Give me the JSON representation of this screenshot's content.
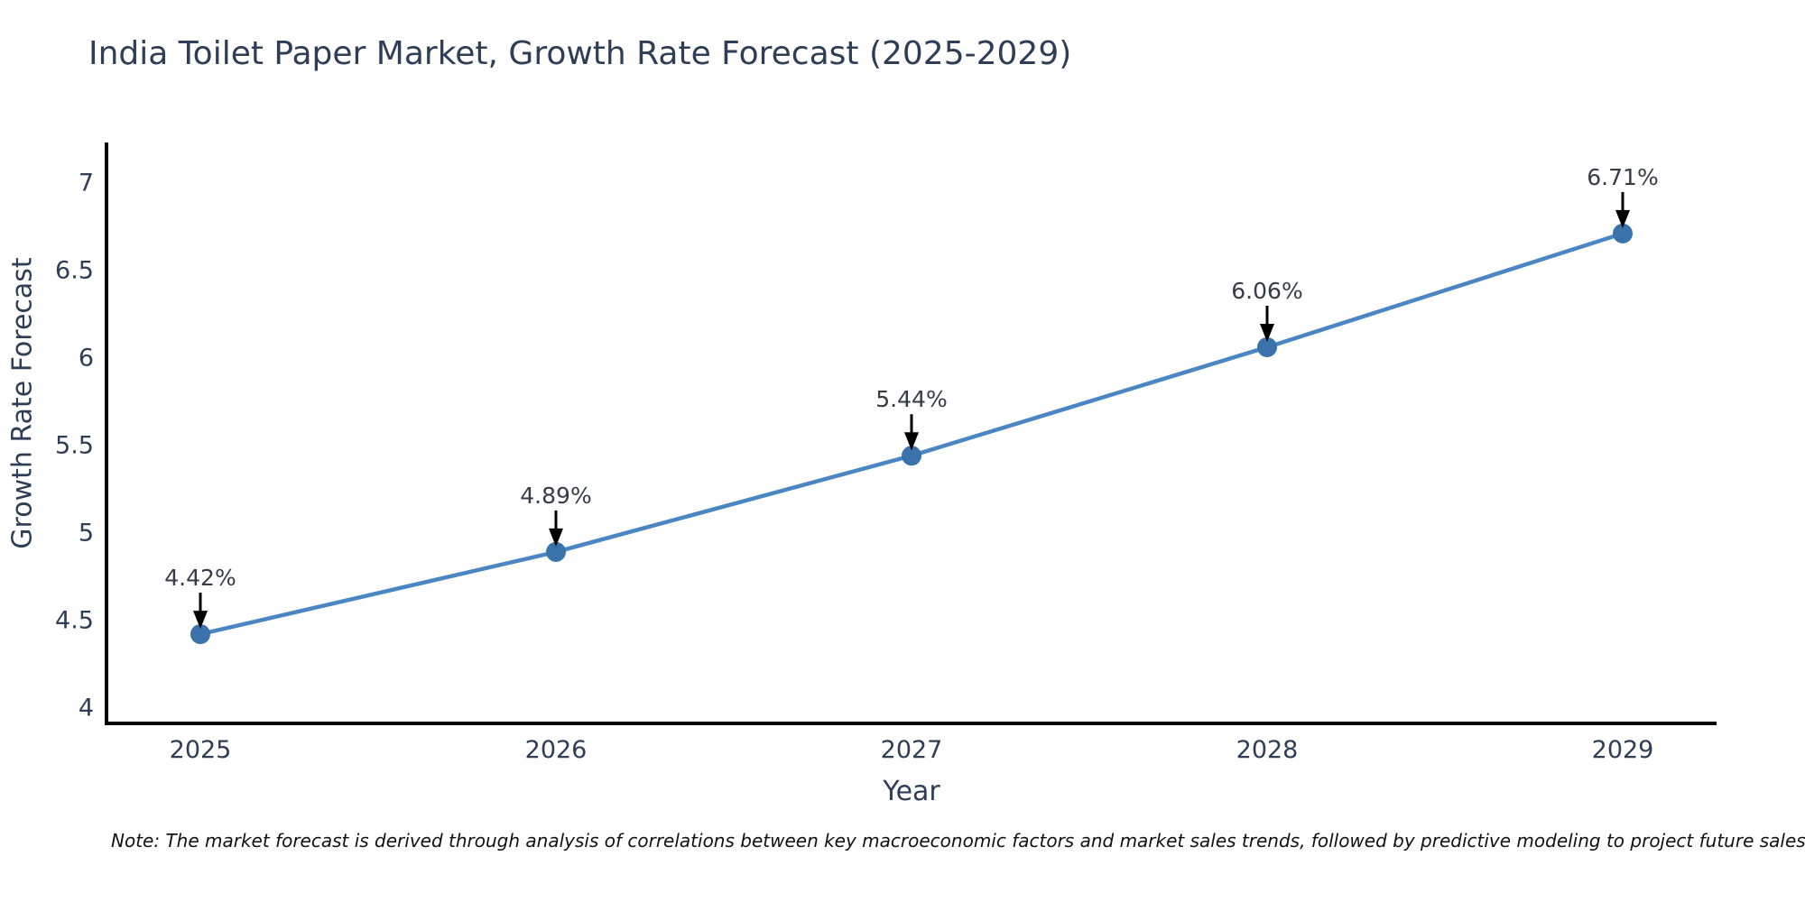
{
  "title": "India Toilet Paper Market, Growth Rate Forecast (2025-2029)",
  "note": "Note: The market forecast is derived through analysis of correlations between key macroeconomic factors and market sales trends, followed by predictive modeling to project future sales",
  "chart_data": {
    "type": "line",
    "x": [
      "2025",
      "2026",
      "2027",
      "2028",
      "2029"
    ],
    "series": [
      {
        "name": "Growth Rate Forecast",
        "values": [
          4.42,
          4.89,
          5.44,
          6.06,
          6.71
        ]
      }
    ],
    "point_labels": [
      "4.42%",
      "4.89%",
      "5.44%",
      "6.06%",
      "6.71%"
    ],
    "xlabel": "Year",
    "ylabel": "Growth Rate Forecast",
    "yticks": [
      4,
      4.5,
      5,
      5.5,
      6,
      6.5,
      7
    ],
    "ylim": [
      3.91,
      7.23
    ],
    "grid": false,
    "legend": "none",
    "annotation_style": "arrow-down-to-point",
    "colors": {
      "line": "#4a86c2",
      "marker": "#3a72ab",
      "arrow": "#000000",
      "axis": "#000000",
      "tick_text": "#2e3e56",
      "annotation_text": "#363c46"
    }
  }
}
